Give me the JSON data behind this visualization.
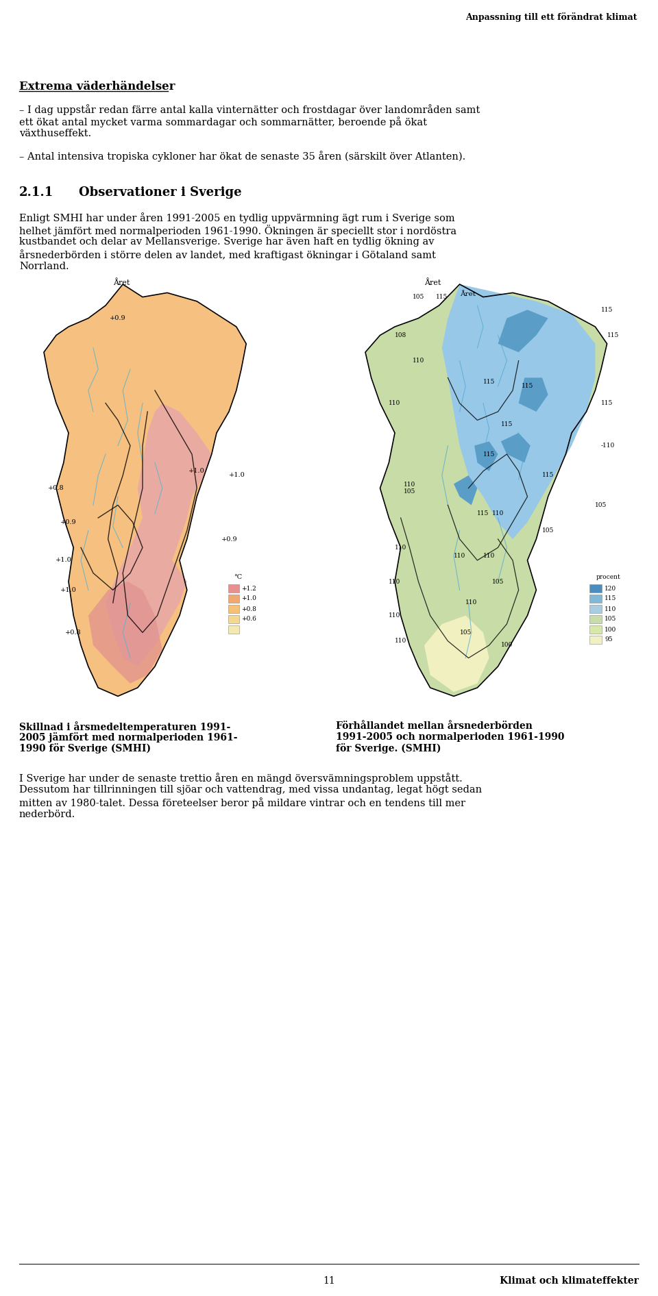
{
  "header_right": "Anpassning till ett förändrat klimat",
  "section_heading_underline": "Extrema väderhändelser",
  "bullet1_line1": "– I dag uppstår redan färre antal kalla vinternätter och frostdagar över landområden samt",
  "bullet1_line2": "ett ökat antal mycket varma sommardagar och sommarnätter, beroende på ökat",
  "bullet1_line3": "växthuseffekt.",
  "bullet2": "– Antal intensiva tropiska cykloner har ökat de senaste 35 åren (särskilt över Atlanten).",
  "section_number": "2.1.1",
  "section_title": "Observationer i Sverige",
  "para1_line1": "Enligt SMHI har under åren 1991-2005 en tydlig uppvärmning ägt rum i Sverige som",
  "para1_line2": "helhet jämfört med normalperioden 1961-1990. Ökningen är speciellt stor i nordöstra",
  "para1_line3": "kustbandet och delar av Mellansverige. Sverige har även haft en tydlig ökning av",
  "para1_line4": "årsnederbörden i större delen av landet, med kraftigast ökningar i Götaland samt",
  "para1_line5": "Norrland.",
  "map_left_cap_line1": "Skillnad i årsmedeltemperaturen 1991-",
  "map_left_cap_line2": "2005 jämfört med normalperioden 1961-",
  "map_left_cap_line3": "1990 för Sverige (SMHI)",
  "map_right_cap_line1": "Förhållandet mellan årsnederbörden",
  "map_right_cap_line2": "1991-2005 och normalperioden 1961-1990",
  "map_right_cap_line3": "för Sverige. (SMHI)",
  "para2_line1": "I Sverige har under de senaste trettio åren en mängd översvämningsproblem uppstått.",
  "para2_line2": "Dessutom har tillrinningen till sjöar och vattendrag, med vissa undantag, legat högt sedan",
  "para2_line3": "mitten av 1980-talet. Dessa företeelser beror på mildare vintrar och en tendens till mer",
  "para2_line4": "nederbörd.",
  "footer_center": "11",
  "footer_right": "Klimat och klimateffekter",
  "bg_color": "#ffffff",
  "text_color": "#000000",
  "temp_legend_colors": [
    "#e8a0a0",
    "#f0b878",
    "#f5c878",
    "#f5d890",
    "#f5e8b0"
  ],
  "temp_legend_labels": [
    "+1.2",
    "+1.0",
    "+0.8",
    "+0.6"
  ],
  "precip_legend_colors": [
    "#6ab0d8",
    "#96c8e8",
    "#b4d8b4",
    "#c8e0b0",
    "#dceec0",
    "#f0f0d0"
  ],
  "precip_legend_labels": [
    "120",
    "115",
    "110",
    "105",
    "100",
    "95"
  ]
}
